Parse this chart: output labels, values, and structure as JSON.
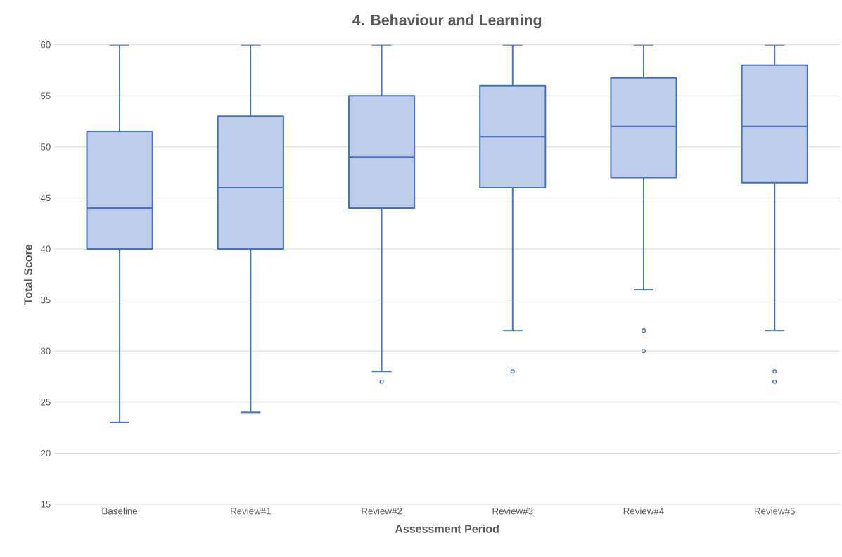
{
  "chart_data": {
    "type": "box",
    "title": "4. Behaviour and Learning",
    "xlabel": "Assessment Period",
    "ylabel": "Total Score",
    "categories": [
      "Baseline",
      "Review#1",
      "Review#2",
      "Review#3",
      "Review#4",
      "Review#5"
    ],
    "color": "#4472c4",
    "boxes": [
      {
        "low": 23,
        "q1": 40,
        "median": 44,
        "q3": 51.5,
        "high": 60
      },
      {
        "low": 24,
        "q1": 40,
        "median": 46,
        "q3": 53,
        "high": 60
      },
      {
        "low": 28,
        "q1": 44,
        "median": 49,
        "q3": 55,
        "high": 60,
        "outliers": [
          27
        ]
      },
      {
        "low": 32,
        "q1": 46,
        "median": 51,
        "q3": 56,
        "high": 60,
        "outliers": [
          28
        ]
      },
      {
        "low": 36,
        "q1": 47,
        "median": 52,
        "q3": 56.75,
        "high": 60,
        "outliers": [
          32,
          30
        ]
      },
      {
        "low": 32,
        "q1": 46.5,
        "median": 52,
        "q3": 58,
        "high": 60,
        "outliers": [
          28,
          27
        ]
      }
    ],
    "ylim": [
      15,
      60
    ],
    "yticks": [
      15,
      20,
      25,
      30,
      35,
      40,
      45,
      50,
      55,
      60
    ],
    "grid": "y"
  }
}
